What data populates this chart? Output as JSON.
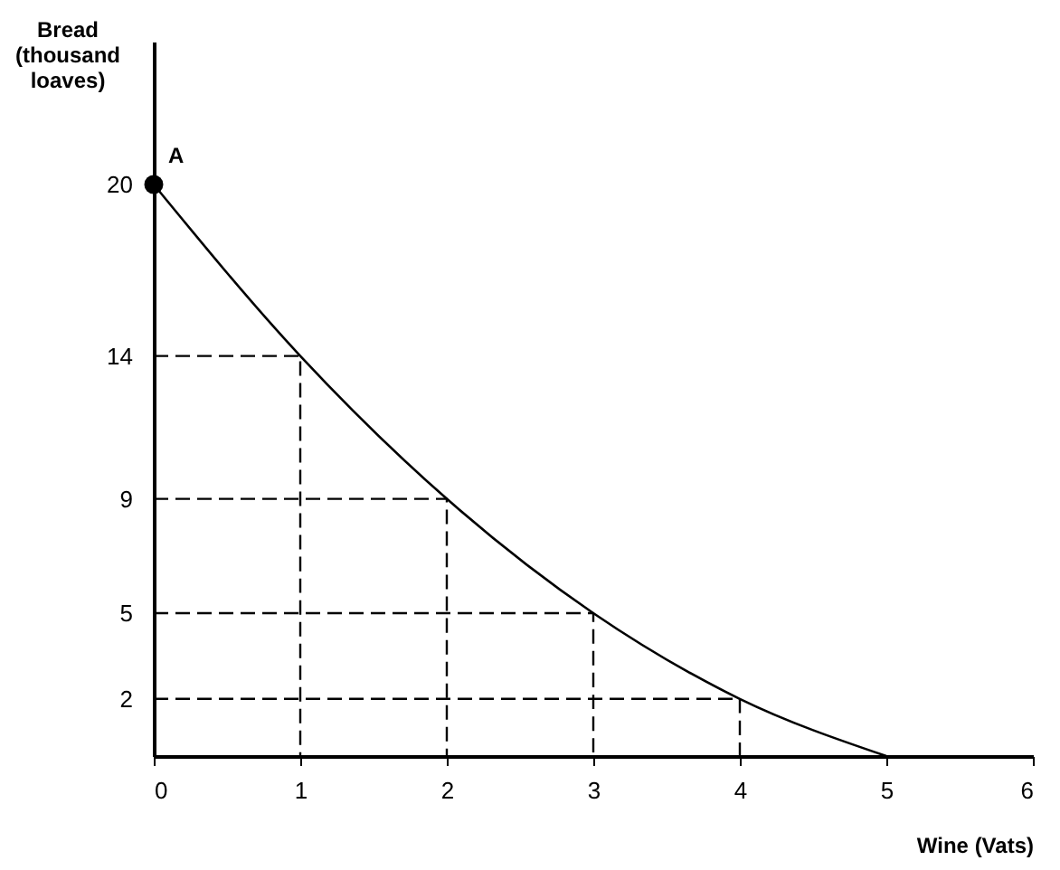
{
  "chart_data": {
    "type": "line",
    "xlabel": "Wine (Vats)",
    "ylabel": "Bread (thousand loaves)",
    "xlim": [
      0,
      6
    ],
    "xticks": [
      0,
      1,
      2,
      3,
      4,
      5,
      6
    ],
    "ylim": [
      0,
      25
    ],
    "yticks": [
      2,
      5,
      9,
      14,
      20
    ],
    "grid": false,
    "marker": "none",
    "line_style": "solid",
    "annotations": [
      {
        "text": "A",
        "x": 0,
        "y": 20
      }
    ],
    "series": [
      {
        "color": "#000000",
        "x": [
          0,
          1,
          2,
          3,
          4,
          5
        ],
        "values": [
          20,
          14,
          9,
          5,
          2,
          0
        ]
      },
      {
        "type": "line",
        "line_style": "dashed",
        "color": "#000000",
        "x": [
          0,
          1,
          1
        ],
        "values": [
          14,
          14,
          0
        ]
      },
      {
        "type": "line",
        "line_style": "dashed",
        "color": "#000000",
        "x": [
          0,
          2,
          2
        ],
        "values": [
          9,
          9,
          0
        ]
      },
      {
        "type": "line",
        "line_style": "dashed",
        "color": "#000000",
        "x": [
          0,
          3,
          3
        ],
        "values": [
          5,
          5,
          0
        ]
      },
      {
        "type": "line",
        "line_style": "dashed",
        "color": "#000000",
        "x": [
          0,
          4,
          4
        ],
        "values": [
          2,
          2,
          0
        ]
      },
      {
        "type": "scatter",
        "marker": "circle",
        "color": "#000000",
        "x": [
          0
        ],
        "values": [
          20
        ]
      }
    ]
  }
}
